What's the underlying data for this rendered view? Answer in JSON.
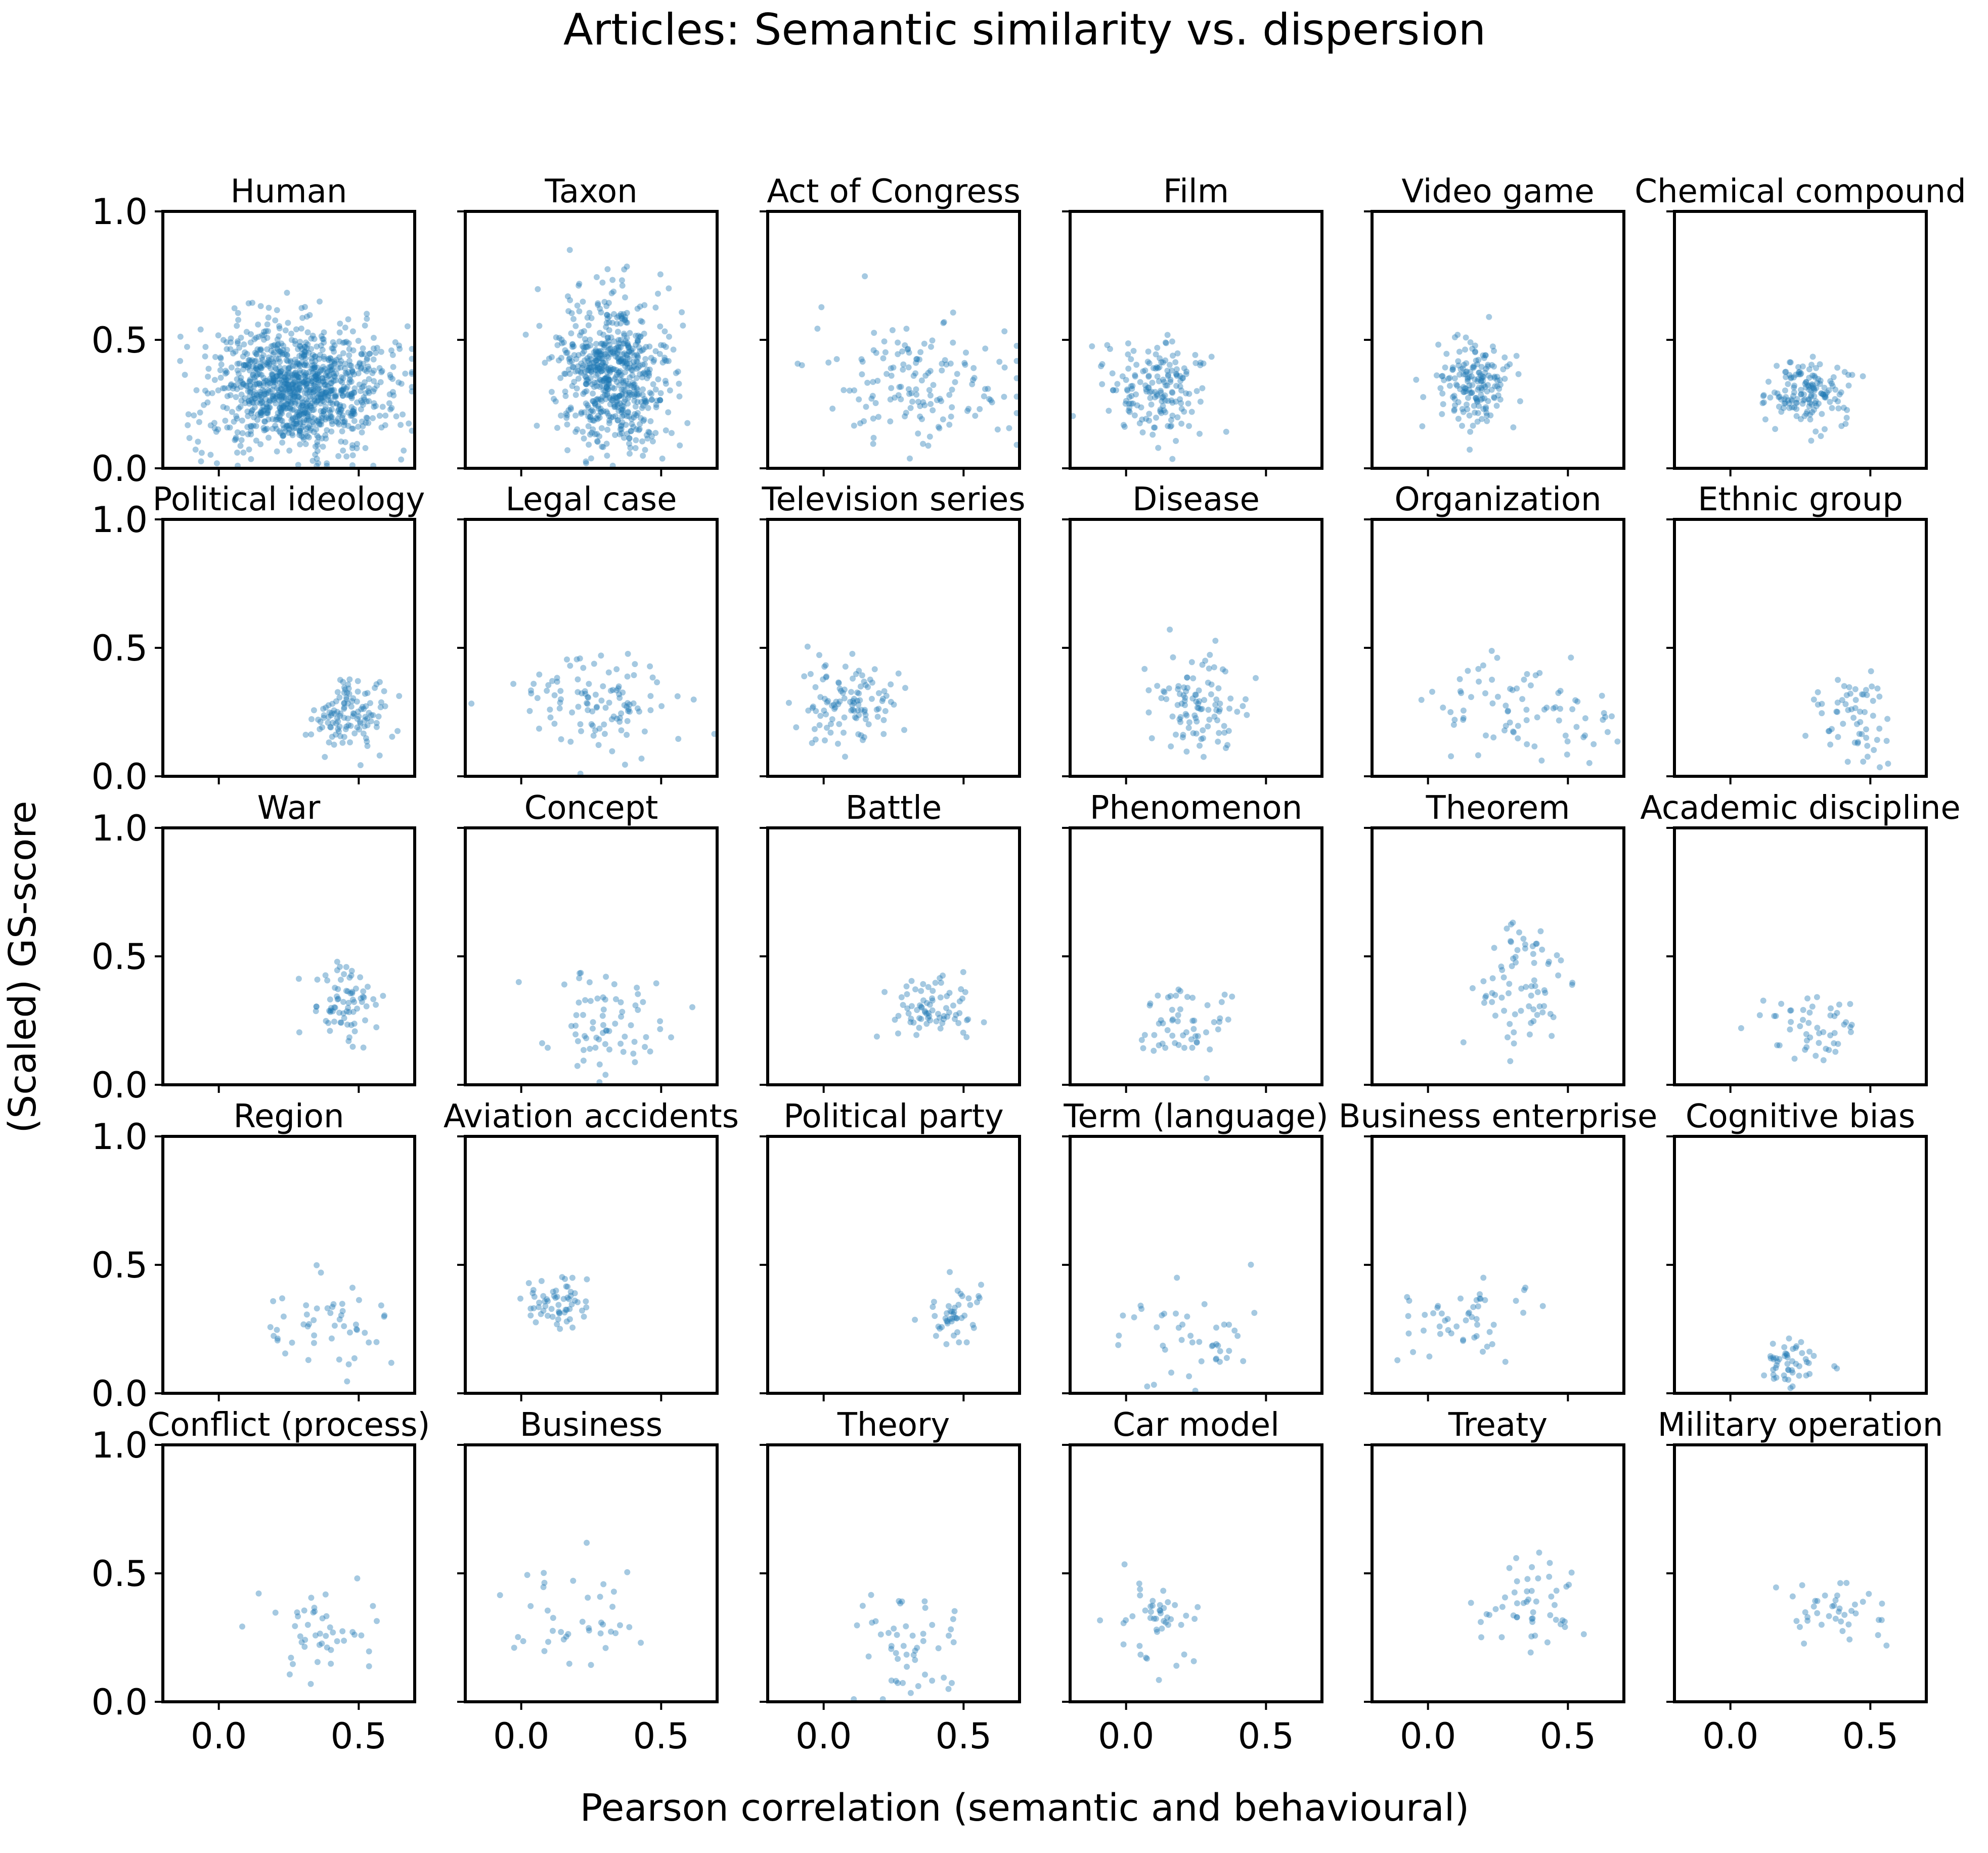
{
  "chart_data": {
    "type": "scatter",
    "title": "Articles: Semantic similarity vs. dispersion",
    "xlabel": "Pearson correlation (semantic and behavioural)",
    "ylabel": "(Scaled) GS-score",
    "xlim": [
      -0.2,
      0.7
    ],
    "ylim": [
      0.0,
      1.0
    ],
    "x_ticks": [
      "0.0",
      "0.5"
    ],
    "y_ticks": [
      "0.0",
      "0.5",
      "1.0"
    ],
    "grid": false,
    "point_color": "#1f77b4",
    "layout": "5 rows x 6 columns, shared axes",
    "panels": [
      {
        "name": "Human",
        "x_center": 0.28,
        "y_center": 0.31,
        "x_spread": 0.16,
        "y_spread": 0.12,
        "n_points": 1100
      },
      {
        "name": "Taxon",
        "x_center": 0.33,
        "y_center": 0.36,
        "x_spread": 0.1,
        "y_spread": 0.15,
        "n_points": 650
      },
      {
        "name": "Act of Congress",
        "x_center": 0.35,
        "y_center": 0.33,
        "x_spread": 0.17,
        "y_spread": 0.12,
        "n_points": 150
      },
      {
        "name": "Film",
        "x_center": 0.12,
        "y_center": 0.3,
        "x_spread": 0.09,
        "y_spread": 0.1,
        "n_points": 170
      },
      {
        "name": "Video game",
        "x_center": 0.17,
        "y_center": 0.32,
        "x_spread": 0.07,
        "y_spread": 0.08,
        "n_points": 170
      },
      {
        "name": "Chemical compound",
        "x_center": 0.28,
        "y_center": 0.29,
        "x_spread": 0.07,
        "y_spread": 0.06,
        "n_points": 150
      },
      {
        "name": "Political ideology",
        "x_center": 0.47,
        "y_center": 0.24,
        "x_spread": 0.07,
        "y_spread": 0.07,
        "n_points": 120
      },
      {
        "name": "Legal case",
        "x_center": 0.3,
        "y_center": 0.28,
        "x_spread": 0.14,
        "y_spread": 0.09,
        "n_points": 110
      },
      {
        "name": "Television series",
        "x_center": 0.08,
        "y_center": 0.3,
        "x_spread": 0.09,
        "y_spread": 0.08,
        "n_points": 110
      },
      {
        "name": "Disease",
        "x_center": 0.28,
        "y_center": 0.28,
        "x_spread": 0.08,
        "y_spread": 0.09,
        "n_points": 100
      },
      {
        "name": "Organization",
        "x_center": 0.35,
        "y_center": 0.25,
        "x_spread": 0.18,
        "y_spread": 0.09,
        "n_points": 80
      },
      {
        "name": "Ethnic group",
        "x_center": 0.42,
        "y_center": 0.23,
        "x_spread": 0.09,
        "y_spread": 0.09,
        "n_points": 60
      },
      {
        "name": "War",
        "x_center": 0.45,
        "y_center": 0.3,
        "x_spread": 0.06,
        "y_spread": 0.07,
        "n_points": 75
      },
      {
        "name": "Concept",
        "x_center": 0.3,
        "y_center": 0.25,
        "x_spread": 0.11,
        "y_spread": 0.1,
        "n_points": 70
      },
      {
        "name": "Battle",
        "x_center": 0.4,
        "y_center": 0.29,
        "x_spread": 0.07,
        "y_spread": 0.06,
        "n_points": 75
      },
      {
        "name": "Phenomenon",
        "x_center": 0.22,
        "y_center": 0.24,
        "x_spread": 0.09,
        "y_spread": 0.1,
        "n_points": 55
      },
      {
        "name": "Theorem",
        "x_center": 0.33,
        "y_center": 0.37,
        "x_spread": 0.08,
        "y_spread": 0.14,
        "n_points": 75
      },
      {
        "name": "Academic discipline",
        "x_center": 0.3,
        "y_center": 0.22,
        "x_spread": 0.1,
        "y_spread": 0.07,
        "n_points": 50
      },
      {
        "name": "Region",
        "x_center": 0.38,
        "y_center": 0.27,
        "x_spread": 0.11,
        "y_spread": 0.09,
        "n_points": 50
      },
      {
        "name": "Aviation accidents",
        "x_center": 0.12,
        "y_center": 0.35,
        "x_spread": 0.07,
        "y_spread": 0.05,
        "n_points": 60
      },
      {
        "name": "Political party",
        "x_center": 0.47,
        "y_center": 0.3,
        "x_spread": 0.06,
        "y_spread": 0.07,
        "n_points": 45
      },
      {
        "name": "Term (language)",
        "x_center": 0.23,
        "y_center": 0.22,
        "x_spread": 0.13,
        "y_spread": 0.09,
        "n_points": 45
      },
      {
        "name": "Business enterprise",
        "x_center": 0.15,
        "y_center": 0.29,
        "x_spread": 0.13,
        "y_spread": 0.08,
        "n_points": 50
      },
      {
        "name": "Cognitive bias",
        "x_center": 0.22,
        "y_center": 0.13,
        "x_spread": 0.06,
        "y_spread": 0.05,
        "n_points": 50
      },
      {
        "name": "Conflict (process)",
        "x_center": 0.38,
        "y_center": 0.28,
        "x_spread": 0.11,
        "y_spread": 0.09,
        "n_points": 45
      },
      {
        "name": "Business",
        "x_center": 0.2,
        "y_center": 0.33,
        "x_spread": 0.15,
        "y_spread": 0.12,
        "n_points": 40
      },
      {
        "name": "Theory",
        "x_center": 0.3,
        "y_center": 0.24,
        "x_spread": 0.1,
        "y_spread": 0.09,
        "n_points": 50
      },
      {
        "name": "Car model",
        "x_center": 0.1,
        "y_center": 0.3,
        "x_spread": 0.07,
        "y_spread": 0.08,
        "n_points": 45
      },
      {
        "name": "Treaty",
        "x_center": 0.38,
        "y_center": 0.36,
        "x_spread": 0.09,
        "y_spread": 0.09,
        "n_points": 50
      },
      {
        "name": "Military operation",
        "x_center": 0.35,
        "y_center": 0.36,
        "x_spread": 0.1,
        "y_spread": 0.07,
        "n_points": 40
      }
    ]
  }
}
